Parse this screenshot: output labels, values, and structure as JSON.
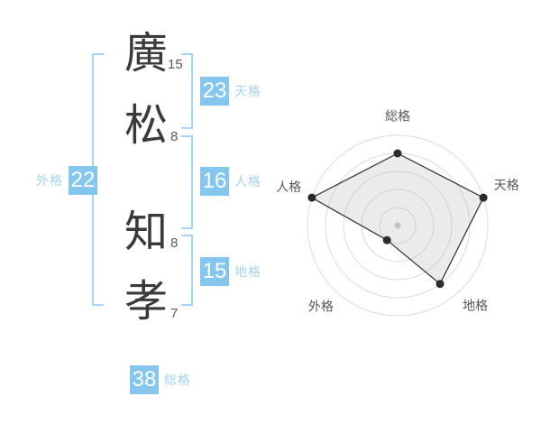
{
  "colors": {
    "badge_blue": "#85c6ee",
    "bracket_blue": "#a8d5f5",
    "label_blue": "#a5d3f2",
    "kanji_dark": "#3a3a3a",
    "stroke_count_gray": "#5a5a5a",
    "radar_grid_gray": "#dcdcdc",
    "radar_line_dark": "#2b2b2b",
    "radar_fill_gray": "#b8b8b8",
    "radar_center_dot_gray": "#c4c4c4",
    "radar_label_gray": "#565656"
  },
  "name": {
    "characters": [
      {
        "char": "廣",
        "strokes": "15"
      },
      {
        "char": "松",
        "strokes": "8"
      },
      {
        "char": "知",
        "strokes": "8"
      },
      {
        "char": "孝",
        "strokes": "7"
      }
    ]
  },
  "kaku": {
    "tenkaku": {
      "value": "23",
      "label": "天格"
    },
    "jinkaku": {
      "value": "16",
      "label": "人格"
    },
    "chikaku": {
      "value": "15",
      "label": "地格"
    },
    "gaikaku": {
      "value": "22",
      "label": "外格"
    },
    "soukaku": {
      "value": "38",
      "label": "総格"
    }
  },
  "chart_data": {
    "type": "radar",
    "axes": [
      "総格",
      "天格",
      "地格",
      "外格",
      "人格"
    ],
    "values": [
      4,
      5,
      4,
      1,
      5
    ],
    "max": 5,
    "rings": 5,
    "start_angle_deg": -90,
    "title": "",
    "grid": true,
    "legend_position": "none"
  }
}
